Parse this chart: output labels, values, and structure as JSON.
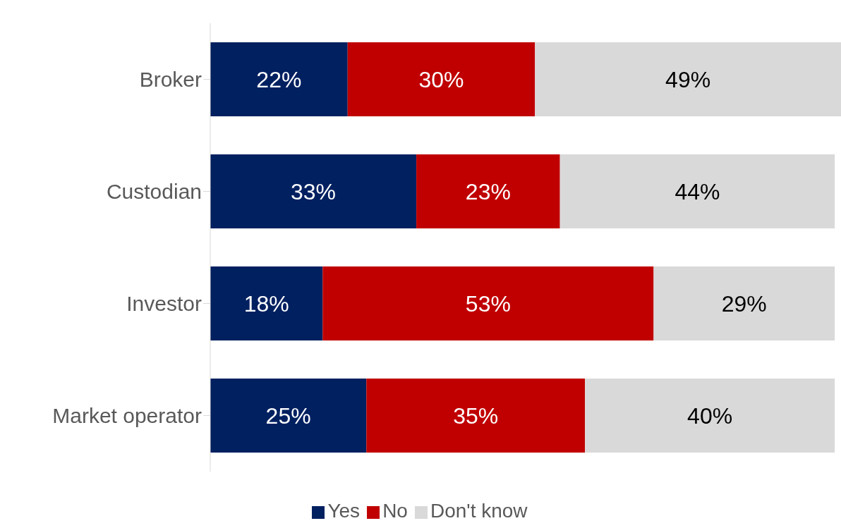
{
  "chart_data": {
    "type": "bar",
    "orientation": "horizontal",
    "stacked": true,
    "legend": "bottom",
    "categories": [
      "Broker",
      "Custodian",
      "Investor",
      "Market operator"
    ],
    "series": [
      {
        "name": "Yes",
        "color": "#002060",
        "values": [
          22,
          33,
          18,
          25
        ],
        "value_labels": [
          "22%",
          "33%",
          "18%",
          "25%"
        ]
      },
      {
        "name": "No",
        "color": "#c00000",
        "values": [
          30,
          23,
          53,
          35
        ],
        "value_labels": [
          "30%",
          "23%",
          "53%",
          "35%"
        ]
      },
      {
        "name": "Don't know",
        "color": "#d9d9d9",
        "values": [
          49,
          44,
          29,
          40
        ],
        "value_labels": [
          "49%",
          "44%",
          "29%",
          "40%"
        ]
      }
    ]
  }
}
